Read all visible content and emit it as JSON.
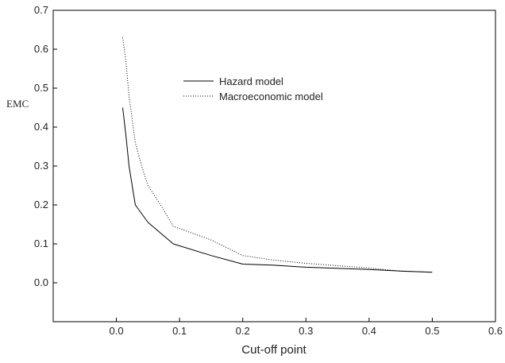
{
  "chart_data": {
    "type": "line",
    "title": "",
    "xlabel": "Cut-off point",
    "ylabel": "EMC",
    "xlim": [
      -0.1,
      0.6
    ],
    "ylim": [
      -0.1,
      0.7
    ],
    "xticks": [
      0.0,
      0.1,
      0.2,
      0.3,
      0.4,
      0.5,
      0.6
    ],
    "xtick_labels": [
      "0.0",
      "0.1",
      "0.2",
      "0.3",
      "0.4",
      "0.5",
      "0.6"
    ],
    "yticks": [
      0.0,
      0.1,
      0.2,
      0.3,
      0.4,
      0.5,
      0.6,
      0.7
    ],
    "ytick_labels": [
      "0.0",
      "0.1",
      "0.2",
      "0.3",
      "0.4",
      "0.5",
      "0.6",
      "0.7"
    ],
    "grid": false,
    "legend_position": "upper-center",
    "series": [
      {
        "name": "Hazard model",
        "style": "solid",
        "color": "#000000",
        "x": [
          0.01,
          0.015,
          0.02,
          0.03,
          0.05,
          0.09,
          0.15,
          0.2,
          0.25,
          0.3,
          0.4,
          0.45,
          0.5
        ],
        "y": [
          0.45,
          0.38,
          0.3,
          0.2,
          0.155,
          0.1,
          0.07,
          0.048,
          0.045,
          0.04,
          0.034,
          0.03,
          0.027
        ]
      },
      {
        "name": "Macroeconomic model",
        "style": "dotted",
        "color": "#000000",
        "x": [
          0.01,
          0.015,
          0.02,
          0.03,
          0.04,
          0.05,
          0.07,
          0.09,
          0.15,
          0.2,
          0.25,
          0.3,
          0.4,
          0.45,
          0.5
        ],
        "y": [
          0.63,
          0.57,
          0.48,
          0.36,
          0.3,
          0.25,
          0.2,
          0.145,
          0.11,
          0.07,
          0.058,
          0.05,
          0.038,
          0.03,
          0.027
        ]
      }
    ]
  }
}
